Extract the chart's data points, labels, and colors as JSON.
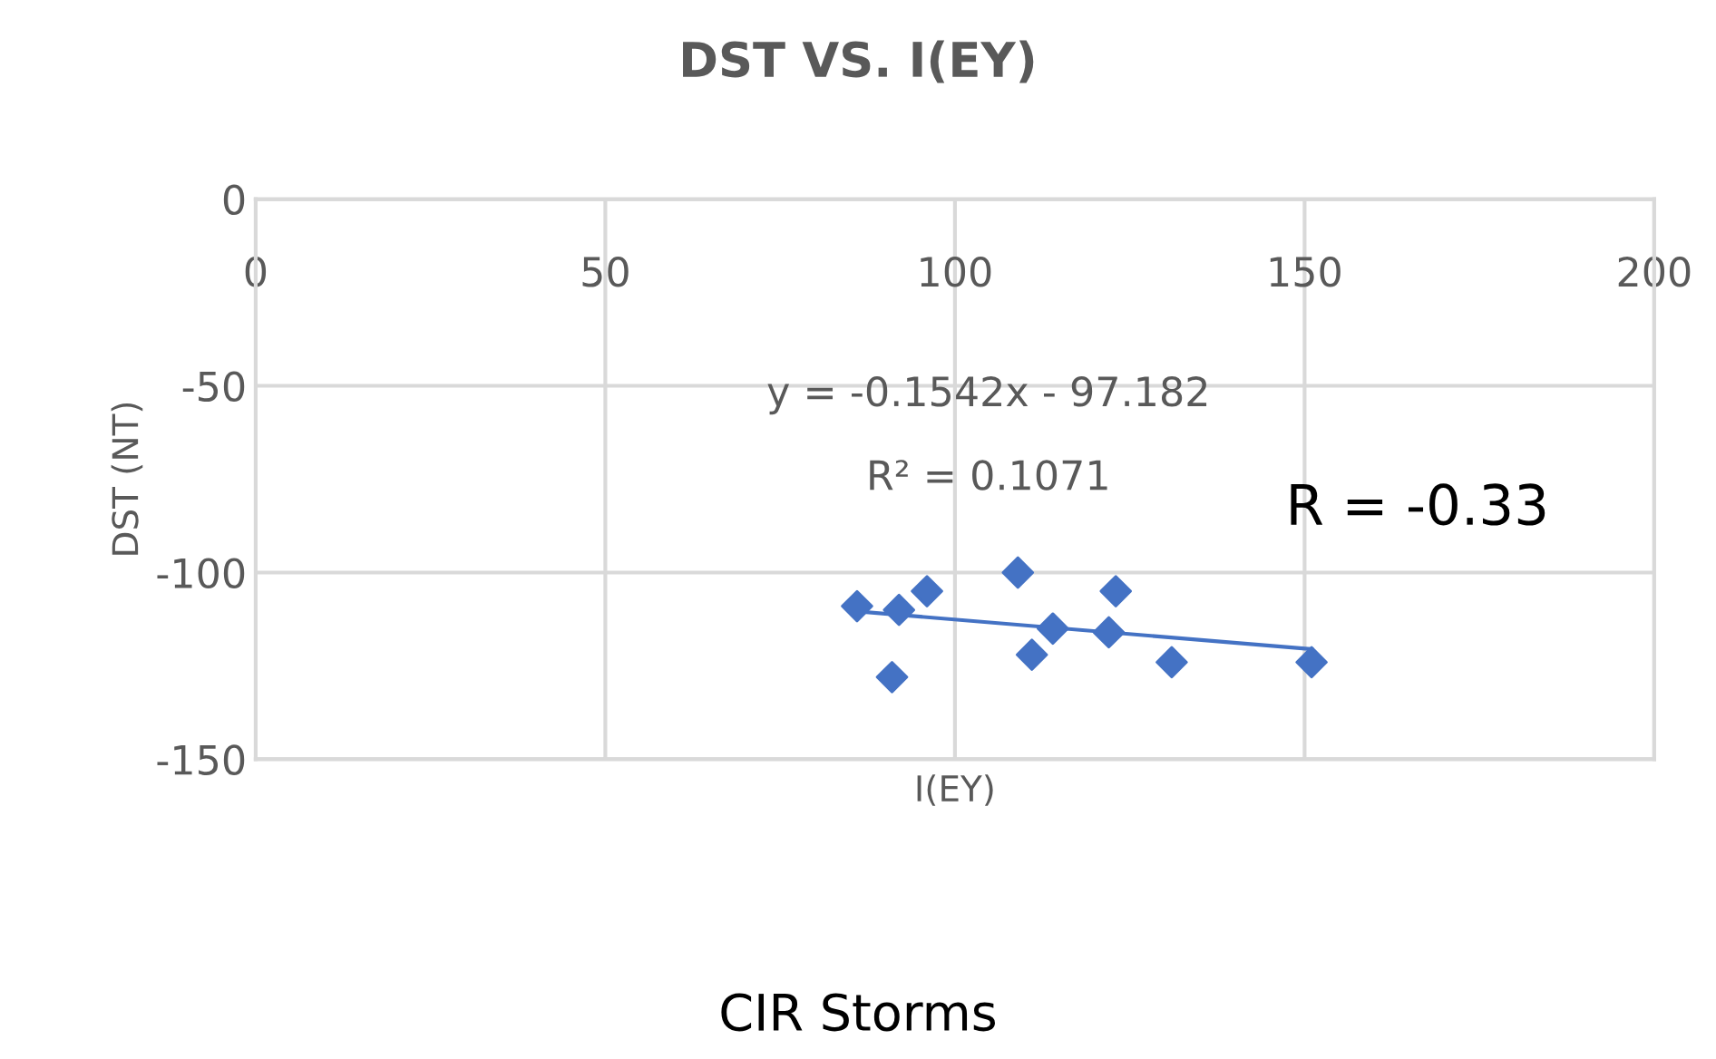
{
  "chart_data": {
    "type": "scatter",
    "title": "DST VS. I(EY)",
    "xlabel": "I(EY)",
    "ylabel": "DST (NT)",
    "series": [
      {
        "color": "#4472c4",
        "marker": "diamond",
        "x": [
          86,
          92,
          91,
          96,
          109,
          111,
          114,
          122,
          123,
          131,
          151
        ],
        "values": [
          -109,
          -110,
          -128,
          -105,
          -100,
          -122,
          -115,
          -116,
          -105,
          -124,
          -124
        ]
      },
      {
        "type": "line",
        "color": "#4472c4",
        "marker": "none",
        "x": [
          86,
          151
        ],
        "values": [
          -110.4,
          -120.5
        ]
      }
    ],
    "xlim": [
      0,
      200
    ],
    "xticks": [
      0,
      50,
      100,
      150,
      200
    ],
    "ylim": [
      -150,
      0
    ],
    "yticks": [
      0,
      -50,
      -100,
      -150
    ],
    "grid": true,
    "legend": false,
    "annotations": [
      "y = -0.1542x - 97.182",
      "R² = 0.1071",
      "R = -0.33",
      "CIR Storms"
    ]
  }
}
